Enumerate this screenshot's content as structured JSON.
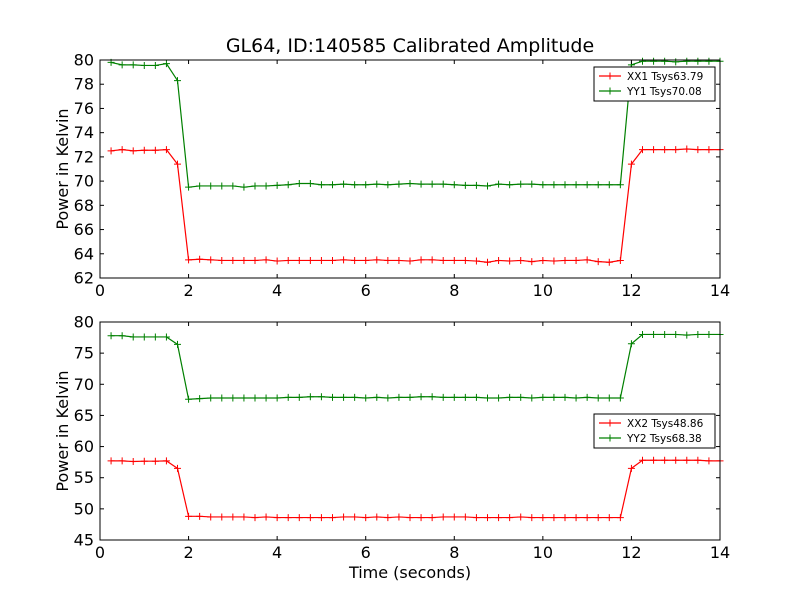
{
  "chart_data": [
    {
      "type": "line",
      "title": "GL64, ID:140585 Calibrated Amplitude",
      "xlabel": "",
      "ylabel": "Power in Kelvin",
      "xlim": [
        0,
        14
      ],
      "ylim": [
        62,
        80
      ],
      "xticks": [
        0,
        2,
        4,
        6,
        8,
        10,
        12,
        14
      ],
      "yticks": [
        62,
        64,
        66,
        68,
        70,
        72,
        74,
        76,
        78,
        80
      ],
      "legend_position": "top-right",
      "x": [
        0.25,
        0.5,
        0.75,
        1.0,
        1.25,
        1.5,
        1.75,
        2.0,
        2.25,
        2.5,
        2.75,
        3.0,
        3.25,
        3.5,
        3.75,
        4.0,
        4.25,
        4.5,
        4.75,
        5.0,
        5.25,
        5.5,
        5.75,
        6.0,
        6.25,
        6.5,
        6.75,
        7.0,
        7.25,
        7.5,
        7.75,
        8.0,
        8.25,
        8.5,
        8.75,
        9.0,
        9.25,
        9.5,
        9.75,
        10.0,
        10.25,
        10.5,
        10.75,
        11.0,
        11.25,
        11.5,
        11.75,
        12.0,
        12.25,
        12.5,
        12.75,
        13.0,
        13.25,
        13.5,
        13.75,
        14.0
      ],
      "series": [
        {
          "name": "XX1 Tsys63.79",
          "color": "#ff0000",
          "values": [
            72.5,
            72.6,
            72.5,
            72.55,
            72.55,
            72.6,
            71.4,
            63.5,
            63.55,
            63.5,
            63.45,
            63.45,
            63.45,
            63.45,
            63.5,
            63.4,
            63.45,
            63.45,
            63.45,
            63.45,
            63.45,
            63.5,
            63.45,
            63.45,
            63.5,
            63.45,
            63.45,
            63.4,
            63.5,
            63.5,
            63.45,
            63.45,
            63.45,
            63.4,
            63.3,
            63.45,
            63.4,
            63.45,
            63.35,
            63.45,
            63.4,
            63.45,
            63.45,
            63.5,
            63.35,
            63.3,
            63.45,
            71.4,
            72.6,
            72.6,
            72.6,
            72.6,
            72.65,
            72.6,
            72.6,
            72.6
          ]
        },
        {
          "name": "YY1 Tsys70.08",
          "color": "#008000",
          "values": [
            79.8,
            79.6,
            79.6,
            79.55,
            79.55,
            79.7,
            78.3,
            69.5,
            69.6,
            69.6,
            69.6,
            69.6,
            69.5,
            69.6,
            69.6,
            69.65,
            69.7,
            69.8,
            69.8,
            69.7,
            69.7,
            69.75,
            69.7,
            69.7,
            69.75,
            69.7,
            69.75,
            69.8,
            69.75,
            69.75,
            69.75,
            69.7,
            69.65,
            69.65,
            69.6,
            69.75,
            69.7,
            69.75,
            69.75,
            69.7,
            69.7,
            69.7,
            69.7,
            69.7,
            69.7,
            69.7,
            69.7,
            79.6,
            79.9,
            79.9,
            79.9,
            79.85,
            79.9,
            79.9,
            79.9,
            79.9
          ]
        }
      ]
    },
    {
      "type": "line",
      "title": "",
      "xlabel": "Time (seconds)",
      "ylabel": "Power in Kelvin",
      "xlim": [
        0,
        14
      ],
      "ylim": [
        45,
        80
      ],
      "xticks": [
        0,
        2,
        4,
        6,
        8,
        10,
        12,
        14
      ],
      "yticks": [
        45,
        50,
        55,
        60,
        65,
        70,
        75,
        80
      ],
      "legend_position": "center-right",
      "x": [
        0.25,
        0.5,
        0.75,
        1.0,
        1.25,
        1.5,
        1.75,
        2.0,
        2.25,
        2.5,
        2.75,
        3.0,
        3.25,
        3.5,
        3.75,
        4.0,
        4.25,
        4.5,
        4.75,
        5.0,
        5.25,
        5.5,
        5.75,
        6.0,
        6.25,
        6.5,
        6.75,
        7.0,
        7.25,
        7.5,
        7.75,
        8.0,
        8.25,
        8.5,
        8.75,
        9.0,
        9.25,
        9.5,
        9.75,
        10.0,
        10.25,
        10.5,
        10.75,
        11.0,
        11.25,
        11.5,
        11.75,
        12.0,
        12.25,
        12.5,
        12.75,
        13.0,
        13.25,
        13.5,
        13.75,
        14.0
      ],
      "series": [
        {
          "name": "XX2 Tsys48.86",
          "color": "#ff0000",
          "values": [
            57.7,
            57.7,
            57.6,
            57.65,
            57.65,
            57.7,
            56.5,
            48.8,
            48.8,
            48.7,
            48.7,
            48.7,
            48.7,
            48.6,
            48.7,
            48.6,
            48.6,
            48.6,
            48.6,
            48.6,
            48.6,
            48.7,
            48.7,
            48.6,
            48.7,
            48.6,
            48.7,
            48.6,
            48.6,
            48.6,
            48.7,
            48.7,
            48.7,
            48.6,
            48.6,
            48.6,
            48.6,
            48.7,
            48.6,
            48.6,
            48.6,
            48.6,
            48.6,
            48.6,
            48.6,
            48.6,
            48.6,
            56.5,
            57.8,
            57.8,
            57.8,
            57.8,
            57.8,
            57.8,
            57.7,
            57.7
          ]
        },
        {
          "name": "YY2 Tsys68.38",
          "color": "#008000",
          "values": [
            77.8,
            77.8,
            77.6,
            77.6,
            77.6,
            77.6,
            76.4,
            67.6,
            67.7,
            67.8,
            67.8,
            67.8,
            67.8,
            67.8,
            67.8,
            67.8,
            67.9,
            67.9,
            68.0,
            68.0,
            67.9,
            67.9,
            67.9,
            67.8,
            67.9,
            67.8,
            67.9,
            67.9,
            68.0,
            68.0,
            67.9,
            67.9,
            67.9,
            67.9,
            67.8,
            67.8,
            67.9,
            67.9,
            67.8,
            67.9,
            67.9,
            67.9,
            67.8,
            67.9,
            67.8,
            67.8,
            67.8,
            76.5,
            78.0,
            78.0,
            78.0,
            78.0,
            77.9,
            78.0,
            78.0,
            78.0
          ]
        }
      ]
    }
  ]
}
